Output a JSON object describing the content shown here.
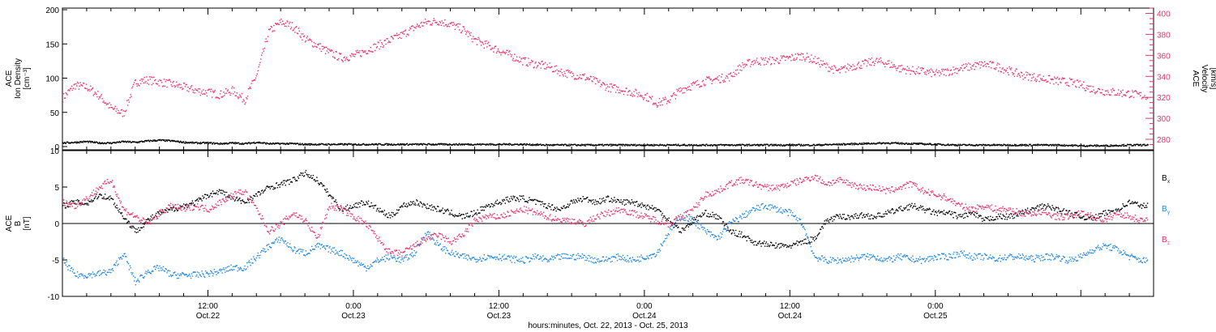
{
  "colors": {
    "density": "#000000",
    "velocity": "#e8336a",
    "bx": "#000000",
    "by": "#1f86e0",
    "bz": "#e8336a",
    "axis": "#000000"
  },
  "chart_data": [
    {
      "type": "scatter",
      "panel": "plasma",
      "title": "",
      "x_unit": "hours since Oct. 22, 2013 00:00",
      "xlim": [
        0,
        90
      ],
      "ylabel_left": [
        "ACE",
        "Ion Density",
        "[cm⁻³]"
      ],
      "ylabel_right": [
        "ACE",
        "Velocity",
        "[km/s]"
      ],
      "ylim_left": [
        0,
        200
      ],
      "ylim_right": [
        270,
        405
      ],
      "yticks_left": [
        "0",
        "50",
        "100",
        "150",
        "200"
      ],
      "yticks_right": [
        "280",
        "300",
        "320",
        "340",
        "360",
        "380",
        "400"
      ],
      "series": [
        {
          "name": "Ion Density",
          "axis": "left",
          "x": [
            0,
            1,
            2,
            3,
            4,
            5,
            6,
            7,
            8,
            9,
            10,
            11,
            12,
            13,
            14,
            15,
            16,
            17,
            18,
            19,
            20,
            22,
            24,
            26,
            28,
            30,
            32,
            34,
            36,
            38,
            40,
            42,
            44,
            46,
            48,
            50,
            52,
            54,
            56,
            58,
            60,
            62,
            64,
            66,
            68,
            70,
            72,
            74,
            76,
            78,
            80,
            82,
            84,
            86,
            88,
            89.5
          ],
          "y": [
            6,
            7,
            8,
            6,
            6,
            8,
            7,
            9,
            10,
            9,
            7,
            6,
            6,
            5,
            6,
            5,
            7,
            5,
            5,
            5,
            4,
            4,
            4,
            4,
            4,
            4,
            4,
            4,
            4,
            4,
            3,
            3,
            3,
            3,
            3,
            3,
            3,
            3,
            3,
            3,
            3,
            3,
            4,
            5,
            6,
            5,
            4,
            3,
            3,
            3,
            3,
            3,
            2,
            2,
            3,
            3
          ]
        },
        {
          "name": "Velocity",
          "axis": "right",
          "x": [
            0,
            1,
            2,
            3,
            4,
            5,
            6,
            7,
            8,
            9,
            10,
            11,
            12,
            13,
            14,
            15,
            16,
            17,
            18,
            19,
            20,
            21,
            22,
            23,
            24,
            25,
            26,
            27,
            28,
            29,
            30,
            31,
            32,
            33,
            34,
            35,
            36,
            37,
            38,
            39,
            40,
            41,
            42,
            43,
            44,
            45,
            46,
            47,
            48,
            49,
            50,
            51,
            52,
            53,
            54,
            55,
            56,
            57,
            58,
            59,
            60,
            61,
            62,
            63,
            64,
            65,
            66,
            67,
            68,
            69,
            70,
            71,
            72,
            73,
            74,
            75,
            76,
            77,
            78,
            79,
            80,
            81,
            82,
            83,
            84,
            85,
            86,
            87,
            88,
            89
          ],
          "y": [
            320,
            332,
            330,
            322,
            310,
            305,
            335,
            337,
            335,
            333,
            330,
            327,
            325,
            323,
            327,
            318,
            342,
            383,
            392,
            388,
            376,
            370,
            363,
            358,
            360,
            365,
            370,
            375,
            380,
            387,
            392,
            393,
            390,
            385,
            375,
            370,
            365,
            360,
            355,
            352,
            350,
            345,
            342,
            340,
            335,
            330,
            328,
            325,
            322,
            315,
            318,
            328,
            332,
            336,
            338,
            340,
            350,
            355,
            355,
            356,
            358,
            360,
            356,
            350,
            345,
            350,
            352,
            355,
            353,
            348,
            346,
            345,
            343,
            345,
            348,
            350,
            352,
            350,
            346,
            342,
            340,
            338,
            336,
            335,
            332,
            328,
            326,
            325,
            324,
            322
          ]
        }
      ]
    },
    {
      "type": "scatter",
      "panel": "magnetic field",
      "title": "",
      "x_unit": "hours since Oct. 22, 2013 00:00",
      "xlim": [
        0,
        90
      ],
      "ylabel": [
        "ACE",
        "B",
        "[nT]"
      ],
      "ylim": [
        -10,
        10
      ],
      "yticks": [
        "-10",
        "-5",
        "0",
        "5",
        "10"
      ],
      "legend_placement": "right",
      "series": [
        {
          "name": "Bx",
          "label_main": "B",
          "label_sub": "x",
          "x": [
            0,
            1,
            2,
            3,
            4,
            5,
            6,
            7,
            8,
            9,
            10,
            11,
            12,
            13,
            14,
            15,
            16,
            17,
            18,
            19,
            20,
            21,
            22,
            23,
            24,
            25,
            26,
            27,
            28,
            29,
            30,
            31,
            32,
            33,
            34,
            35,
            36,
            37,
            38,
            39,
            40,
            41,
            42,
            43,
            44,
            45,
            46,
            47,
            48,
            49,
            50,
            51,
            52,
            53,
            54,
            55,
            56,
            57,
            58,
            59,
            60,
            61,
            62,
            63,
            64,
            65,
            66,
            67,
            68,
            69,
            70,
            71,
            72,
            73,
            74,
            75,
            76,
            77,
            78,
            79,
            80,
            81,
            82,
            83,
            84,
            85,
            86,
            87,
            88,
            89
          ],
          "y": [
            2.5,
            3.0,
            2.8,
            4.0,
            3.5,
            1.0,
            -1.0,
            0.5,
            1.5,
            2.0,
            2.5,
            3.0,
            4.0,
            4.5,
            3.5,
            3.0,
            4.0,
            5.0,
            5.5,
            6.0,
            7.0,
            6.0,
            4.0,
            2.0,
            2.5,
            3.0,
            2.0,
            1.0,
            2.5,
            3.0,
            2.5,
            2.0,
            1.5,
            1.0,
            1.5,
            2.5,
            3.0,
            3.5,
            3.5,
            3.0,
            2.5,
            2.0,
            3.0,
            3.5,
            3.0,
            3.5,
            3.0,
            3.0,
            2.5,
            2.0,
            0.5,
            -1.0,
            0.5,
            1.5,
            1.0,
            -1.0,
            -1.5,
            -2.5,
            -2.8,
            -3.0,
            -3.0,
            -2.5,
            -2.0,
            0.5,
            1.0,
            1.0,
            1.2,
            1.0,
            1.5,
            2.0,
            2.5,
            2.0,
            1.5,
            1.5,
            1.0,
            1.5,
            0.5,
            1.0,
            1.0,
            1.5,
            2.0,
            2.5,
            2.0,
            1.5,
            1.0,
            0.8,
            1.5,
            2.0,
            3.0,
            2.5
          ]
        },
        {
          "name": "By",
          "label_main": "B",
          "label_sub": "y",
          "x": [
            0,
            1,
            2,
            3,
            4,
            5,
            6,
            7,
            8,
            9,
            10,
            11,
            12,
            13,
            14,
            15,
            16,
            17,
            18,
            19,
            20,
            21,
            22,
            23,
            24,
            25,
            26,
            27,
            28,
            29,
            30,
            31,
            32,
            33,
            34,
            35,
            36,
            37,
            38,
            39,
            40,
            41,
            42,
            43,
            44,
            45,
            46,
            47,
            48,
            49,
            50,
            51,
            52,
            53,
            54,
            55,
            56,
            57,
            58,
            59,
            60,
            61,
            62,
            63,
            64,
            65,
            66,
            67,
            68,
            69,
            70,
            71,
            72,
            73,
            74,
            75,
            76,
            77,
            78,
            79,
            80,
            81,
            82,
            83,
            84,
            85,
            86,
            87,
            88,
            89
          ],
          "y": [
            -5.0,
            -7.0,
            -7.0,
            -6.8,
            -6.5,
            -4.0,
            -8.0,
            -6.5,
            -6.0,
            -7.0,
            -7.0,
            -7.0,
            -6.8,
            -6.5,
            -6.0,
            -6.0,
            -4.5,
            -3.0,
            -2.0,
            -3.5,
            -4.0,
            -3.0,
            -3.5,
            -4.0,
            -5.0,
            -6.0,
            -5.0,
            -4.5,
            -5.0,
            -4.0,
            -1.0,
            -3.0,
            -4.0,
            -4.5,
            -4.8,
            -4.5,
            -4.5,
            -4.8,
            -5.0,
            -4.5,
            -5.0,
            -4.5,
            -4.5,
            -4.5,
            -5.0,
            -4.8,
            -4.5,
            -5.0,
            -4.5,
            -4.0,
            -1.0,
            1.0,
            0.5,
            -1.0,
            -2.0,
            0.0,
            1.0,
            2.0,
            2.5,
            2.0,
            1.5,
            0.0,
            -4.5,
            -5.0,
            -5.0,
            -4.8,
            -4.5,
            -4.5,
            -5.0,
            -4.5,
            -4.8,
            -5.0,
            -4.5,
            -4.5,
            -4.0,
            -4.5,
            -4.5,
            -4.8,
            -4.5,
            -4.5,
            -4.8,
            -4.5,
            -4.5,
            -5.0,
            -4.5,
            -3.5,
            -3.0,
            -3.5,
            -4.5,
            -5.0
          ]
        },
        {
          "name": "Bz",
          "label_main": "B",
          "label_sub": "z",
          "x": [
            0,
            1,
            2,
            3,
            4,
            5,
            6,
            7,
            8,
            9,
            10,
            11,
            12,
            13,
            14,
            15,
            16,
            17,
            18,
            19,
            20,
            21,
            22,
            23,
            24,
            25,
            26,
            27,
            28,
            29,
            30,
            31,
            32,
            33,
            34,
            35,
            36,
            37,
            38,
            39,
            40,
            41,
            42,
            43,
            44,
            45,
            46,
            47,
            48,
            49,
            50,
            51,
            52,
            53,
            54,
            55,
            56,
            57,
            58,
            59,
            60,
            61,
            62,
            63,
            64,
            65,
            66,
            67,
            68,
            69,
            70,
            71,
            72,
            73,
            74,
            75,
            76,
            77,
            78,
            79,
            80,
            81,
            82,
            83,
            84,
            85,
            86,
            87,
            88,
            89
          ],
          "y": [
            3.0,
            2.5,
            3.5,
            5.0,
            6.0,
            2.0,
            1.0,
            0.0,
            1.5,
            2.5,
            2.0,
            2.5,
            2.0,
            3.0,
            4.0,
            4.5,
            2.0,
            -1.0,
            0.0,
            1.5,
            0.5,
            -2.0,
            2.5,
            2.0,
            1.0,
            0.0,
            -2.0,
            -4.0,
            -4.0,
            -3.0,
            -2.0,
            -1.5,
            -2.5,
            -1.5,
            0.5,
            1.0,
            1.0,
            1.5,
            2.0,
            1.5,
            1.0,
            0.5,
            0.5,
            0.0,
            1.0,
            1.5,
            2.0,
            1.5,
            1.0,
            0.5,
            0.0,
            1.0,
            2.0,
            4.0,
            4.5,
            5.5,
            6.0,
            5.5,
            5.0,
            5.0,
            5.5,
            6.0,
            6.5,
            5.5,
            6.0,
            5.5,
            5.0,
            5.0,
            4.5,
            5.0,
            5.5,
            4.5,
            4.0,
            3.5,
            2.5,
            2.0,
            2.5,
            2.0,
            2.0,
            1.5,
            1.5,
            1.5,
            1.0,
            1.0,
            1.5,
            1.0,
            0.5,
            1.5,
            1.0,
            0.5
          ]
        }
      ]
    }
  ],
  "x_axis": {
    "tick_labels": [
      {
        "time": "12:00",
        "date": "Oct.22",
        "hour": 12
      },
      {
        "time": "0:00",
        "date": "Oct.23",
        "hour": 24
      },
      {
        "time": "12:00",
        "date": "Oct.23",
        "hour": 36
      },
      {
        "time": "0:00",
        "date": "Oct.24",
        "hour": 48
      },
      {
        "time": "12:00",
        "date": "Oct.24",
        "hour": 60
      },
      {
        "time": "0:00",
        "date": "Oct.25",
        "hour": 72
      }
    ],
    "label": "hours:minutes, Oct. 22, 2013 - Oct. 25, 2013"
  }
}
